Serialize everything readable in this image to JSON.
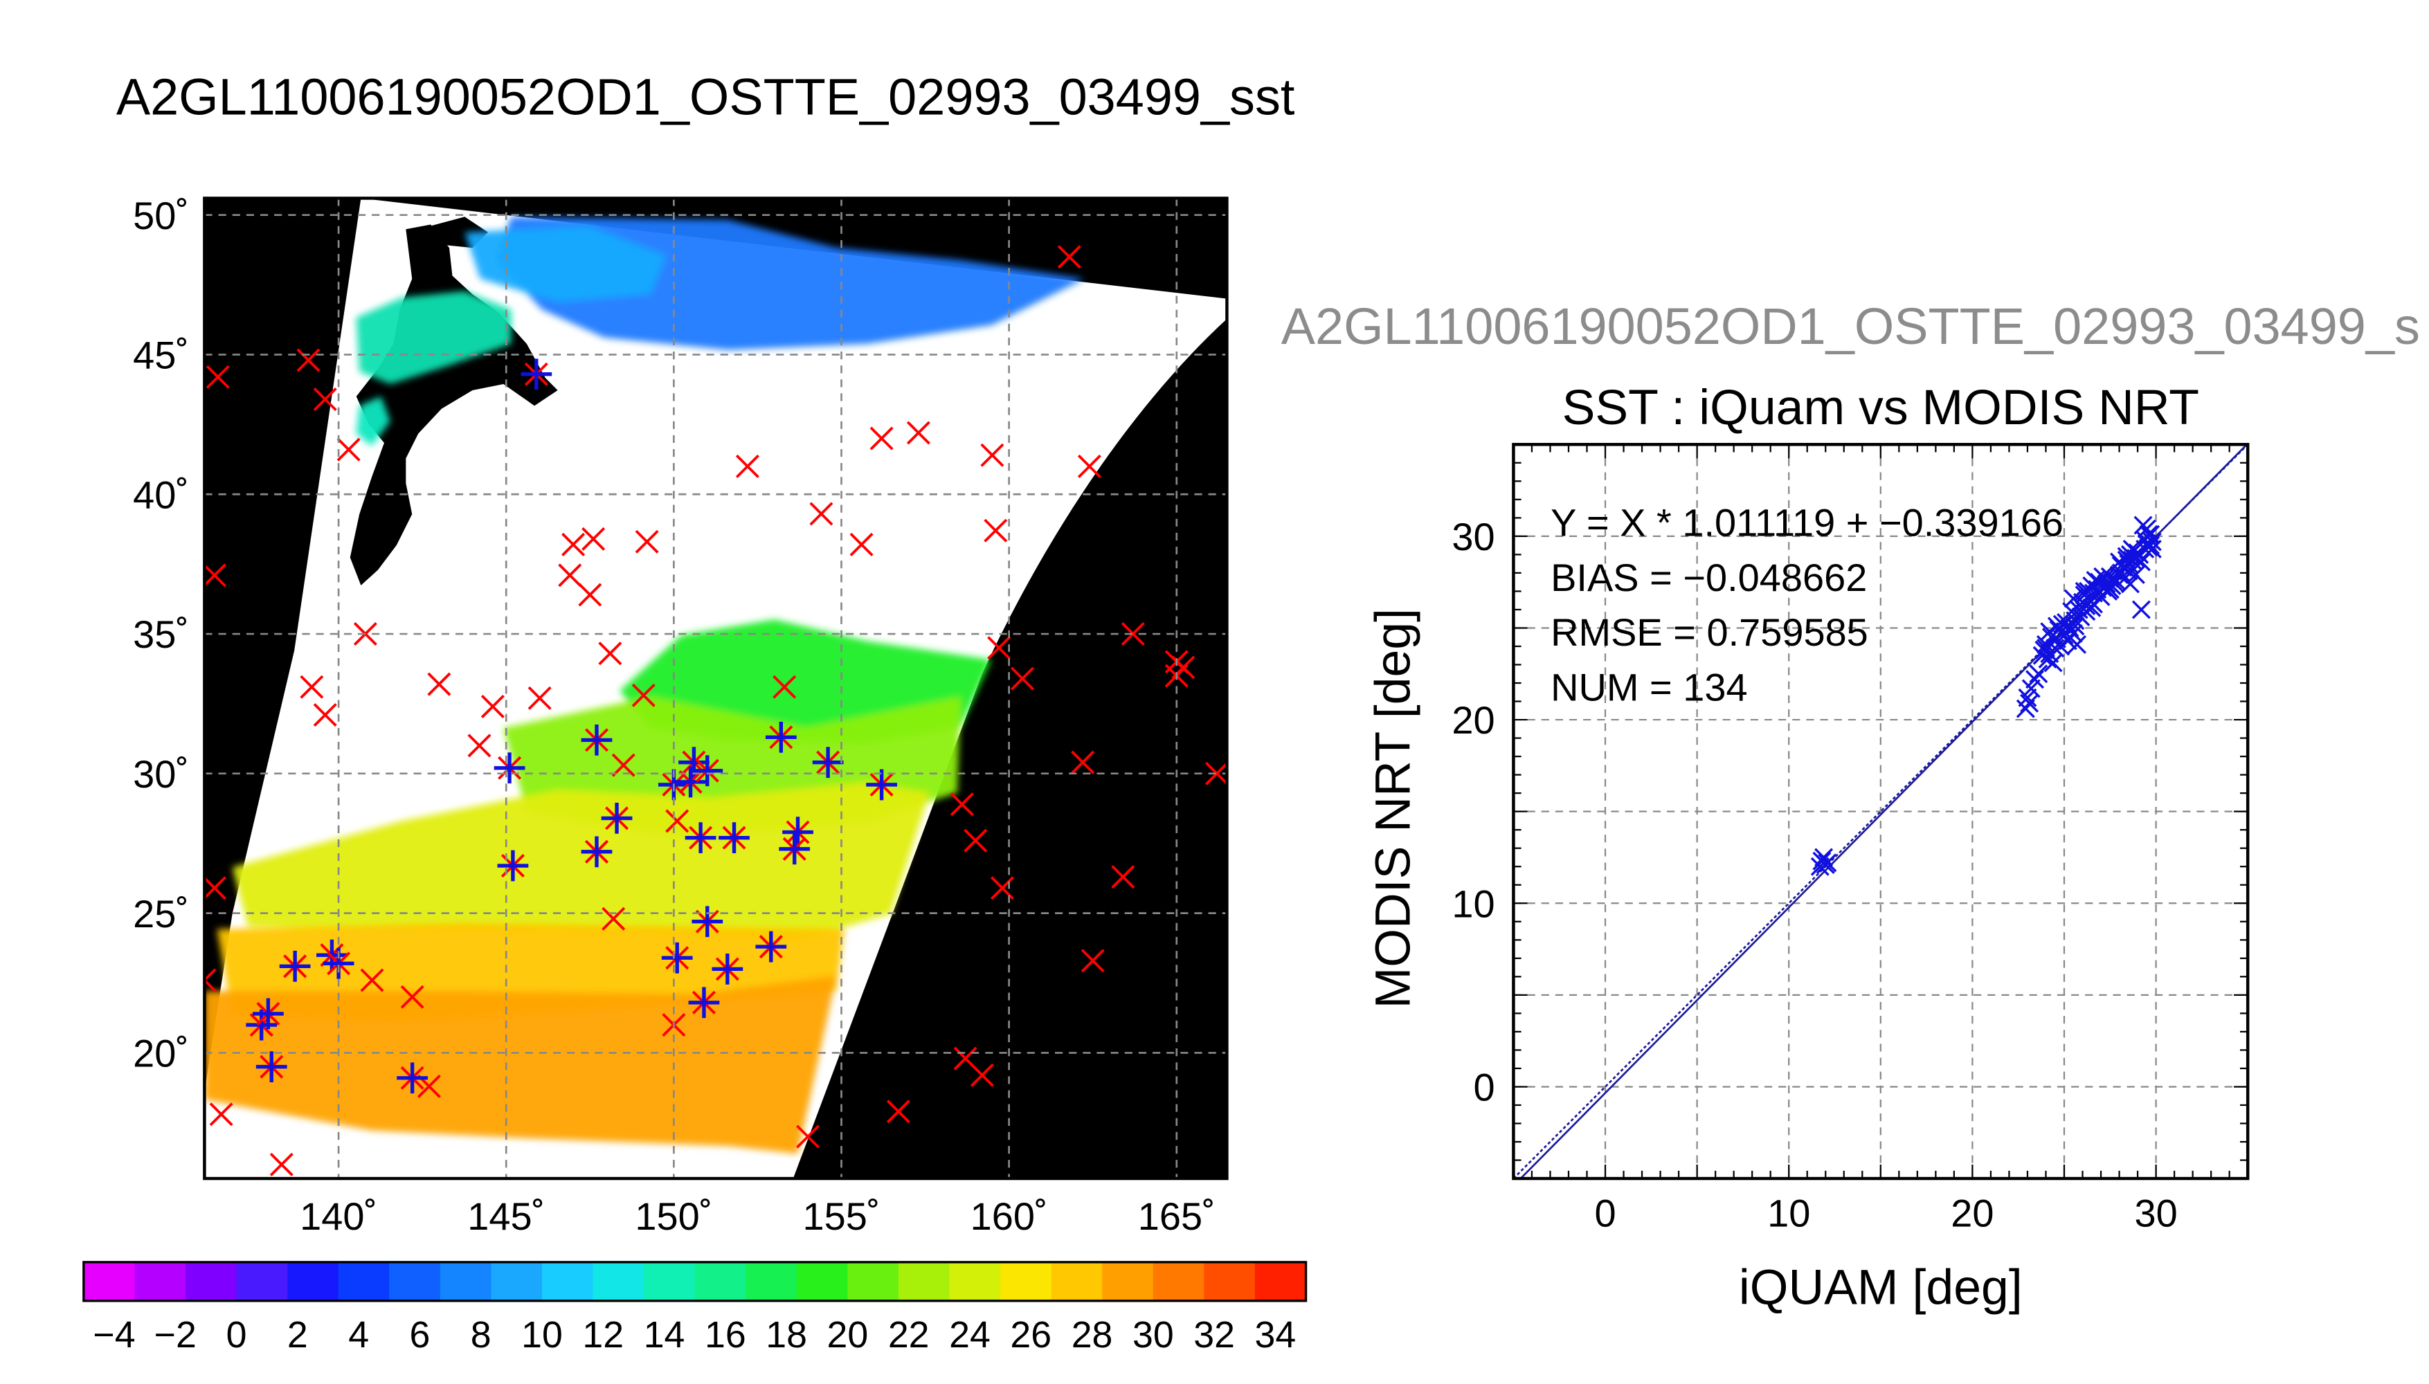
{
  "page_title": "A2GL11006190052OD1_OSTTE_02993_03499_sst",
  "secondary_title": "A2GL11006190052OD1_OSTTE_02993_03499_s",
  "colors": {
    "map_background": "#000000",
    "no_data_swath": "#ffffff",
    "grid": "#888888",
    "iquam_marker": "#ff0000",
    "modis_marker": "#1010e0",
    "regression_line": "#1a1a99"
  },
  "chart_data": [
    {
      "type": "heatmap",
      "title": "",
      "description_fields": "map of SST with in-situ match-up markers",
      "x_ticks": [
        "140˚",
        "145˚",
        "150˚",
        "155˚",
        "160˚",
        "165˚"
      ],
      "x_tick_values": [
        140,
        145,
        150,
        155,
        160,
        165
      ],
      "y_ticks": [
        "50˚",
        "45˚",
        "40˚",
        "35˚",
        "30˚",
        "25˚",
        "20˚"
      ],
      "y_tick_values": [
        50,
        45,
        40,
        35,
        30,
        25,
        20
      ],
      "xlim": [
        136,
        166.5
      ],
      "ylim": [
        15.5,
        50.6
      ],
      "grid": true,
      "colorbar": {
        "range": [
          -5,
          35
        ],
        "step": 2,
        "tick_labels": [
          "−4",
          "−2",
          "0",
          "2",
          "4",
          "6",
          "8",
          "10",
          "12",
          "14",
          "16",
          "18",
          "20",
          "22",
          "24",
          "26",
          "28",
          "30",
          "32",
          "34"
        ],
        "colors": [
          "#e600ff",
          "#b400ff",
          "#8000ff",
          "#4a1aff",
          "#1818ff",
          "#0a3cff",
          "#1060ff",
          "#1484ff",
          "#1aa8ff",
          "#18ccff",
          "#12e6e6",
          "#10f0b4",
          "#12f08a",
          "#16f050",
          "#28f01a",
          "#6af00e",
          "#a8f00a",
          "#d2f008",
          "#fae600",
          "#ffc800",
          "#ffa000",
          "#ff7800",
          "#ff4e00",
          "#ff2000"
        ]
      },
      "iquam_points": [
        [
          136.4,
          44.2
        ],
        [
          139.1,
          44.8
        ],
        [
          139.6,
          43.4
        ],
        [
          140.3,
          41.6
        ],
        [
          136.3,
          37.1
        ],
        [
          140.8,
          35.0
        ],
        [
          139.2,
          33.1
        ],
        [
          139.6,
          32.1
        ],
        [
          143.0,
          33.2
        ],
        [
          144.6,
          32.4
        ],
        [
          146.0,
          32.7
        ],
        [
          147.0,
          38.2
        ],
        [
          147.6,
          38.4
        ],
        [
          146.9,
          37.1
        ],
        [
          147.5,
          36.4
        ],
        [
          148.1,
          34.3
        ],
        [
          149.2,
          38.3
        ],
        [
          149.1,
          32.8
        ],
        [
          148.5,
          30.3
        ],
        [
          150.1,
          28.3
        ],
        [
          152.2,
          41.0
        ],
        [
          154.4,
          39.3
        ],
        [
          155.6,
          38.2
        ],
        [
          156.2,
          42.0
        ],
        [
          157.3,
          42.2
        ],
        [
          159.5,
          41.4
        ],
        [
          159.6,
          38.7
        ],
        [
          162.4,
          41.0
        ],
        [
          161.8,
          48.5
        ],
        [
          163.7,
          35.0
        ],
        [
          165.0,
          34.0
        ],
        [
          165.0,
          33.5
        ],
        [
          165.2,
          33.8
        ],
        [
          166.2,
          30.0
        ],
        [
          162.2,
          30.4
        ],
        [
          160.4,
          33.4
        ],
        [
          159.7,
          34.5
        ],
        [
          158.6,
          28.9
        ],
        [
          159.0,
          27.6
        ],
        [
          159.8,
          25.9
        ],
        [
          163.4,
          26.3
        ],
        [
          162.5,
          23.3
        ],
        [
          158.7,
          19.8
        ],
        [
          159.2,
          19.2
        ],
        [
          156.7,
          17.9
        ],
        [
          154.0,
          17.0
        ],
        [
          150.0,
          21.0
        ],
        [
          148.2,
          24.8
        ],
        [
          142.2,
          22.0
        ],
        [
          141.0,
          22.6
        ],
        [
          136.3,
          25.9
        ],
        [
          136.0,
          22.6
        ],
        [
          136.5,
          17.8
        ],
        [
          138.3,
          16.0
        ],
        [
          142.7,
          18.8
        ],
        [
          144.2,
          31.0
        ],
        [
          153.3,
          33.1
        ],
        [
          147.7,
          27.2
        ]
      ],
      "collocated_points": [
        [
          145.9,
          44.3
        ],
        [
          145.1,
          30.2
        ],
        [
          145.2,
          26.7
        ],
        [
          147.7,
          31.2
        ],
        [
          148.3,
          28.4
        ],
        [
          147.7,
          27.2
        ],
        [
          150.0,
          29.6
        ],
        [
          150.6,
          30.4
        ],
        [
          150.5,
          29.7
        ],
        [
          151.0,
          30.1
        ],
        [
          151.8,
          27.7
        ],
        [
          150.8,
          27.7
        ],
        [
          153.2,
          31.3
        ],
        [
          154.6,
          30.4
        ],
        [
          153.7,
          27.9
        ],
        [
          153.6,
          27.3
        ],
        [
          156.2,
          29.6
        ],
        [
          151.0,
          24.7
        ],
        [
          151.6,
          23.0
        ],
        [
          152.9,
          23.8
        ],
        [
          150.1,
          23.4
        ],
        [
          150.9,
          21.8
        ],
        [
          139.8,
          23.5
        ],
        [
          140.0,
          23.2
        ],
        [
          138.7,
          23.1
        ],
        [
          137.7,
          21.0
        ],
        [
          137.9,
          21.4
        ],
        [
          138.0,
          19.5
        ],
        [
          142.2,
          19.1
        ]
      ]
    },
    {
      "type": "scatter",
      "title": "SST : iQuam vs MODIS NRT",
      "xlabel": "iQUAM [deg]",
      "ylabel": "MODIS NRT [deg]",
      "xlim": [
        -5,
        35
      ],
      "ylim": [
        -5,
        35
      ],
      "x_ticks": [
        0,
        10,
        20,
        30
      ],
      "y_ticks": [
        0,
        10,
        20,
        30
      ],
      "grid": true,
      "annotations": [
        "Y = X * 1.011119 + −0.339166",
        "BIAS = −0.048662",
        "RMSE = 0.759585",
        "NUM = 134"
      ],
      "fit": {
        "slope": 1.011119,
        "intercept": -0.339166
      },
      "points": [
        [
          11.8,
          12.3
        ],
        [
          12.0,
          12.1
        ],
        [
          11.9,
          12.5
        ],
        [
          12.1,
          12.2
        ],
        [
          11.7,
          12.0
        ],
        [
          22.9,
          20.6
        ],
        [
          23.0,
          21.2
        ],
        [
          23.2,
          21.7
        ],
        [
          23.4,
          22.2
        ],
        [
          23.1,
          20.9
        ],
        [
          23.6,
          22.5
        ],
        [
          23.9,
          23.8
        ],
        [
          24.0,
          24.1
        ],
        [
          24.2,
          23.6
        ],
        [
          24.3,
          24.5
        ],
        [
          24.1,
          23.3
        ],
        [
          24.5,
          23.9
        ],
        [
          24.6,
          24.4
        ],
        [
          24.8,
          24.0
        ],
        [
          24.4,
          23.1
        ],
        [
          24.7,
          24.9
        ],
        [
          24.9,
          25.2
        ],
        [
          25.0,
          24.6
        ],
        [
          24.2,
          24.8
        ],
        [
          23.8,
          23.5
        ],
        [
          25.2,
          24.3
        ],
        [
          25.3,
          25.0
        ],
        [
          25.5,
          24.7
        ],
        [
          25.6,
          25.4
        ],
        [
          25.4,
          25.9
        ],
        [
          25.7,
          24.1
        ],
        [
          25.8,
          26.0
        ],
        [
          25.9,
          25.6
        ],
        [
          26.0,
          26.4
        ],
        [
          25.5,
          26.6
        ],
        [
          25.1,
          25.3
        ],
        [
          26.1,
          26.8
        ],
        [
          26.2,
          26.2
        ],
        [
          26.3,
          27.0
        ],
        [
          26.4,
          26.5
        ],
        [
          26.5,
          27.3
        ],
        [
          26.6,
          26.9
        ],
        [
          26.7,
          27.6
        ],
        [
          26.8,
          27.1
        ],
        [
          26.9,
          27.5
        ],
        [
          27.0,
          26.7
        ],
        [
          27.1,
          27.2
        ],
        [
          26.2,
          25.9
        ],
        [
          26.5,
          26.1
        ],
        [
          27.2,
          27.7
        ],
        [
          27.3,
          27.4
        ],
        [
          27.4,
          27.0
        ],
        [
          27.5,
          27.8
        ],
        [
          27.6,
          27.3
        ],
        [
          27.8,
          27.6
        ],
        [
          28.0,
          27.9
        ],
        [
          27.7,
          27.5
        ],
        [
          28.0,
          28.6
        ],
        [
          28.2,
          28.3
        ],
        [
          28.4,
          28.9
        ],
        [
          28.5,
          28.5
        ],
        [
          28.6,
          29.0
        ],
        [
          28.7,
          28.7
        ],
        [
          28.8,
          29.2
        ],
        [
          28.9,
          28.8
        ],
        [
          29.0,
          29.1
        ],
        [
          29.2,
          28.6
        ],
        [
          28.3,
          27.7
        ],
        [
          28.1,
          28.0
        ],
        [
          28.6,
          27.4
        ],
        [
          28.9,
          27.9
        ],
        [
          29.2,
          26.0
        ],
        [
          29.4,
          29.3
        ],
        [
          29.5,
          29.6
        ],
        [
          29.6,
          29.4
        ],
        [
          29.7,
          30.1
        ],
        [
          29.8,
          29.7
        ],
        [
          29.5,
          30.4
        ],
        [
          29.3,
          30.6
        ],
        [
          29.6,
          30.1
        ],
        [
          29.8,
          29.3
        ],
        [
          29.4,
          29.8
        ],
        [
          29.7,
          29.5
        ],
        [
          28.7,
          29.3
        ],
        [
          28.5,
          28.1
        ],
        [
          28.4,
          28.7
        ],
        [
          26.1,
          27.0
        ],
        [
          27.1,
          27.8
        ],
        [
          25.6,
          25.1
        ],
        [
          26.6,
          26.3
        ],
        [
          27.5,
          27.1
        ],
        [
          24.0,
          23.9
        ],
        [
          24.6,
          25.1
        ],
        [
          25.3,
          24.5
        ],
        [
          28.1,
          28.4
        ],
        [
          29.1,
          29.0
        ]
      ]
    }
  ]
}
